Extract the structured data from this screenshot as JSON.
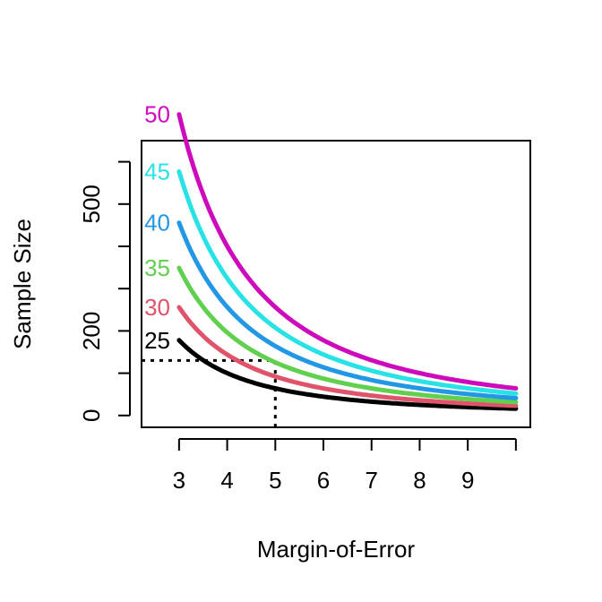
{
  "chart_data": {
    "type": "line",
    "title": "",
    "xlabel": "Margin-of-Error",
    "ylabel": "Sample Size",
    "x_tick_labels": [
      "3",
      "4",
      "5",
      "6",
      "7",
      "8",
      "9"
    ],
    "x_tick_positions": [
      3,
      4,
      5,
      6,
      7,
      8,
      9,
      10
    ],
    "y_tick_labels": [
      "0",
      "200",
      "500"
    ],
    "y_tick_values": [
      0,
      200,
      500
    ],
    "y_minor_ticks": [
      100,
      300,
      400,
      600
    ],
    "xlim": [
      2.22,
      10.3
    ],
    "ylim": [
      -28,
      650
    ],
    "legend": "none",
    "x_range": [
      3,
      10
    ],
    "series": [
      {
        "name": "25",
        "color": "#000000",
        "values_at": {
          "3": 178,
          "5": 64,
          "10": 16
        }
      },
      {
        "name": "30",
        "color": "#DF536B",
        "values_at": {
          "3": 256,
          "5": 92,
          "10": 23
        }
      },
      {
        "name": "35",
        "color": "#61D04F",
        "values_at": {
          "3": 349,
          "5": 126,
          "10": 31
        }
      },
      {
        "name": "40",
        "color": "#2297E6",
        "values_at": {
          "3": 456,
          "5": 164,
          "10": 41
        }
      },
      {
        "name": "45",
        "color": "#28E2E5",
        "values_at": {
          "3": 577,
          "5": 208,
          "10": 52
        }
      },
      {
        "name": "50",
        "color": "#CD0BBC",
        "values_at": {
          "3": 712,
          "5": 256,
          "10": 64
        }
      }
    ],
    "annotation": {
      "x": 5,
      "y": 130,
      "style": "dotted"
    }
  }
}
